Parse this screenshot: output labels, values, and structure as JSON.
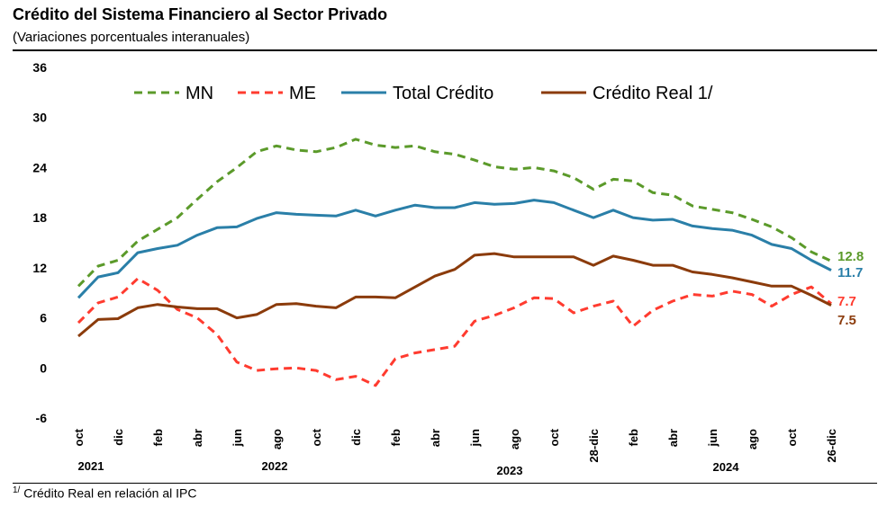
{
  "title": "Crédito del Sistema Financiero al Sector Privado",
  "subtitle": "(Variaciones porcentuales interanuales)",
  "footnote": {
    "sup": "1/",
    "text": "Crédito Real en relación al IPC"
  },
  "colors": {
    "MN": "#5b9a2a",
    "ME": "#ff3b2f",
    "Total": "#2a7fa8",
    "Real": "#8b3b0b"
  },
  "chart_data": {
    "type": "line",
    "ylim": [
      -6,
      36
    ],
    "yticks": [
      -6,
      0,
      6,
      12,
      18,
      24,
      30,
      36
    ],
    "x_tick_labels": [
      "oct",
      "dic",
      "feb",
      "abr",
      "jun",
      "ago",
      "oct",
      "dic",
      "feb",
      "abr",
      "jun",
      "ago",
      "oct",
      "28-dic",
      "feb",
      "abr",
      "jun",
      "ago",
      "oct",
      "26-dic"
    ],
    "years": [
      "2021",
      "2022",
      "2023",
      "2024"
    ],
    "series": [
      {
        "key": "MN",
        "name": "MN",
        "style": "dashed",
        "values": [
          9.8,
          12.2,
          12.9,
          15.2,
          16.6,
          18.0,
          20.2,
          22.3,
          24.0,
          25.9,
          26.6,
          26.1,
          25.9,
          26.4,
          27.4,
          26.7,
          26.4,
          26.6,
          25.9,
          25.6,
          24.9,
          24.1,
          23.8,
          24.0,
          23.6,
          22.8,
          21.4,
          22.6,
          22.4,
          21.0,
          20.7,
          19.4,
          19.0,
          18.6,
          17.8,
          16.9,
          15.6,
          13.9,
          12.8
        ]
      },
      {
        "key": "ME",
        "name": "ME",
        "style": "dashed",
        "values": [
          5.4,
          7.8,
          8.5,
          10.7,
          9.3,
          7.0,
          6.0,
          4.0,
          0.7,
          -0.3,
          -0.1,
          0.0,
          -0.3,
          -1.4,
          -1.0,
          -2.1,
          1.1,
          1.8,
          2.2,
          2.6,
          5.6,
          6.3,
          7.2,
          8.4,
          8.3,
          6.6,
          7.4,
          8.0,
          5.0,
          6.9,
          8.0,
          8.8,
          8.6,
          9.2,
          8.8,
          7.4,
          8.8,
          9.7,
          7.7
        ]
      },
      {
        "key": "Total",
        "name": "Total Crédito",
        "style": "solid",
        "values": [
          8.4,
          10.9,
          11.4,
          13.8,
          14.3,
          14.7,
          15.9,
          16.8,
          16.9,
          17.9,
          18.6,
          18.4,
          18.3,
          18.2,
          18.9,
          18.2,
          18.9,
          19.5,
          19.2,
          19.2,
          19.8,
          19.6,
          19.7,
          20.1,
          19.8,
          18.9,
          18.0,
          18.9,
          18.0,
          17.7,
          17.8,
          17.0,
          16.7,
          16.5,
          15.9,
          14.8,
          14.3,
          12.9,
          11.7
        ]
      },
      {
        "key": "Real",
        "name": "Crédito Real 1/",
        "style": "solid",
        "values": [
          3.8,
          5.8,
          5.9,
          7.2,
          7.6,
          7.3,
          7.1,
          7.1,
          6.0,
          6.4,
          7.6,
          7.7,
          7.4,
          7.2,
          8.5,
          8.5,
          8.4,
          9.7,
          11.0,
          11.8,
          13.5,
          13.7,
          13.3,
          13.3,
          13.3,
          13.3,
          12.3,
          13.4,
          12.9,
          12.3,
          12.3,
          11.5,
          11.2,
          10.8,
          10.3,
          9.8,
          9.8,
          8.7,
          7.5
        ]
      }
    ],
    "end_labels": [
      {
        "key": "MN",
        "text": "12.8"
      },
      {
        "key": "Total",
        "text": "11.7"
      },
      {
        "key": "ME",
        "text": "7.7"
      },
      {
        "key": "Real",
        "text": "7.5"
      }
    ],
    "legend": [
      {
        "key": "MN",
        "label": "MN"
      },
      {
        "key": "ME",
        "label": "ME"
      },
      {
        "key": "Total",
        "label": "Total Crédito"
      },
      {
        "key": "Real",
        "label": "Crédito Real 1/"
      }
    ]
  }
}
